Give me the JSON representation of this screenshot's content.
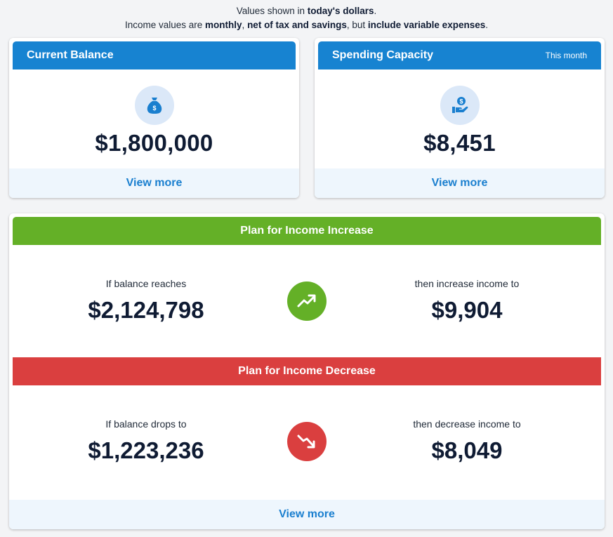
{
  "notice": {
    "line1_pre": "Values shown in ",
    "line1_bold": "today's dollars",
    "line1_post": ".",
    "line2_pre": "Income values are ",
    "line2_b1": "monthly",
    "line2_sep1": ", ",
    "line2_b2": "net of tax and savings",
    "line2_sep2": ", but ",
    "line2_b3": "include variable expenses",
    "line2_post": "."
  },
  "current_balance": {
    "title": "Current Balance",
    "value": "$1,800,000",
    "icon": "money-bag-icon",
    "view_more": "View more"
  },
  "spending_capacity": {
    "title": "Spending Capacity",
    "period": "This month",
    "value": "$8,451",
    "icon": "hand-dollar-icon",
    "view_more": "View more"
  },
  "plan_increase": {
    "title": "Plan for Income Increase",
    "condition_label": "If balance reaches",
    "condition_value": "$2,124,798",
    "action_label": "then increase income to",
    "action_value": "$9,904",
    "icon": "trend-up-icon",
    "color": "#64b027"
  },
  "plan_decrease": {
    "title": "Plan for Income Decrease",
    "condition_label": "If balance drops to",
    "condition_value": "$1,223,236",
    "action_label": "then decrease income to",
    "action_value": "$8,049",
    "icon": "trend-down-icon",
    "color": "#da3f3f"
  },
  "plans_view_more": "View more",
  "colors": {
    "header_blue": "#1783d1",
    "link_blue": "#1a7fcf",
    "icon_bg": "#dbe8f8"
  }
}
